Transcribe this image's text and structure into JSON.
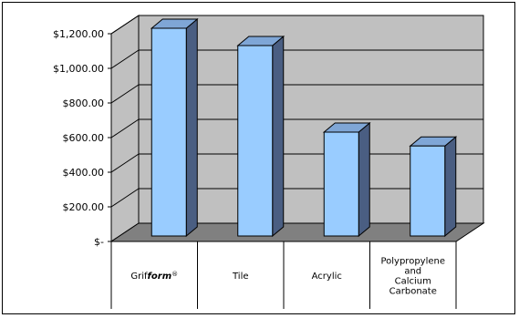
{
  "chart_data": {
    "type": "bar",
    "title": "",
    "xlabel": "",
    "ylabel": "",
    "categories": [
      [
        "Grif",
        "form",
        "®"
      ],
      [
        "Tile"
      ],
      [
        "Acrylic"
      ],
      [
        "Polypropylene",
        "and",
        "Calcium",
        "Carbonate"
      ]
    ],
    "values": [
      1200,
      1100,
      600,
      520
    ],
    "ylim": [
      0,
      1200
    ],
    "yticks": [
      "$-",
      "$200.00",
      "$400.00",
      "$600.00",
      "$800.00",
      "$1,000.00",
      "$1,200.00"
    ],
    "grid": true,
    "legend": "none",
    "colors": {
      "bar_front": "#99ccff",
      "bar_side": "#4a5e82",
      "bar_top": "#7fa6d6",
      "wall": "#c0c0c0",
      "floor": "#808080",
      "outline": "#000000"
    }
  }
}
